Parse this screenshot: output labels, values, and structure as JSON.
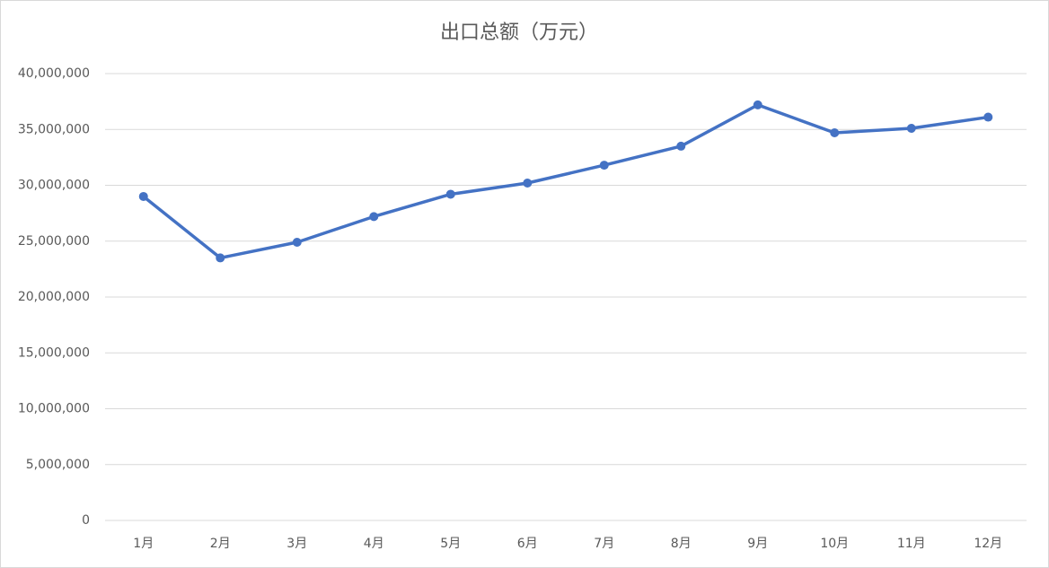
{
  "chart_data": {
    "type": "line",
    "title": "出口总额（万元）",
    "categories": [
      "1月",
      "2月",
      "3月",
      "4月",
      "5月",
      "6月",
      "7月",
      "8月",
      "9月",
      "10月",
      "11月",
      "12月"
    ],
    "series": [
      {
        "name": "出口总额",
        "color": "#4472c4",
        "values": [
          29000000,
          23500000,
          24900000,
          27200000,
          29200000,
          30200000,
          31800000,
          33500000,
          37200000,
          34700000,
          35100000,
          36100000
        ]
      }
    ],
    "ylim": [
      0,
      40000000
    ],
    "yticks": [
      0,
      {
        "value": 5000000,
        "label": "5,000,000"
      },
      {
        "value": 10000000,
        "label": "10,000,000"
      },
      {
        "value": 15000000,
        "label": "15,000,000"
      },
      {
        "value": 20000000,
        "label": "20,000,000"
      },
      {
        "value": 25000000,
        "label": "25,000,000"
      },
      {
        "value": 30000000,
        "label": "30,000,000"
      },
      {
        "value": 35000000,
        "label": "35,000,000"
      },
      {
        "value": 40000000,
        "label": "40,000,000"
      }
    ],
    "grid": true
  }
}
